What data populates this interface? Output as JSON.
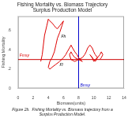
{
  "chart_data": {
    "type": "line",
    "title": "Fishing Mortality vs. Biomass Trajectory\nSurplus Production Model",
    "caption": "Figure 2b.  Fishing Mortality vs. Biomass trajectory from a\nSurplus Production Model.",
    "x_label": "Biomass(units)",
    "y_label": "Fishing Mortality",
    "x": [
      3.0,
      3.2,
      3.5,
      3.8,
      4.0,
      4.2,
      4.5,
      4.8,
      5.0,
      5.2,
      5.5,
      5.8,
      6.0,
      5.8,
      5.5,
      5.2,
      5.0,
      4.8,
      4.5,
      4.2,
      4.0,
      4.2,
      4.5,
      5.0,
      5.5,
      6.0,
      6.3,
      6.5,
      6.8,
      7.0,
      7.2,
      7.5,
      7.8,
      8.0,
      8.2,
      8.5,
      8.0,
      7.5,
      7.2,
      7.0,
      6.8,
      7.0,
      7.5,
      8.0,
      8.5,
      8.8,
      9.0,
      9.2,
      9.5,
      9.8,
      10.0,
      10.2,
      10.5,
      10.2,
      10.0,
      9.8,
      9.5,
      9.8,
      10.0,
      10.2,
      10.5,
      10.8,
      11.0,
      11.2,
      11.0,
      10.8
    ],
    "series": [
      {
        "color": "#dd0000",
        "values": [
          0.28,
          0.35,
          0.55,
          0.65,
          0.72,
          0.7,
          0.68,
          0.65,
          0.63,
          0.62,
          0.65,
          0.68,
          0.7,
          0.65,
          0.58,
          0.52,
          0.45,
          0.38,
          0.32,
          0.28,
          0.22,
          0.2,
          0.22,
          0.25,
          0.28,
          0.32,
          0.35,
          0.38,
          0.42,
          0.45,
          0.42,
          0.38,
          0.35,
          0.32,
          0.3,
          0.28,
          0.3,
          0.32,
          0.35,
          0.38,
          0.35,
          0.3,
          0.28,
          0.3,
          0.32,
          0.35,
          0.38,
          0.42,
          0.45,
          0.42,
          0.38,
          0.35,
          0.32,
          0.3,
          0.28,
          0.32,
          0.35,
          0.32,
          0.3,
          0.28,
          0.32,
          0.35,
          0.38,
          0.35,
          0.32,
          0.3
        ]
      }
    ],
    "h_line": {
      "y": 0.3,
      "color": "#cc0000"
    },
    "v_line": {
      "x": 8.0,
      "color": "#0000cc"
    },
    "annotations": [
      {
        "text": "Fmsy",
        "x": 0.2,
        "y": 0.32,
        "color": "#dd0000"
      },
      {
        "text": "Bmsy",
        "x": 8.2,
        "y": 0.01,
        "color": "#0000cc"
      },
      {
        "text": "Fh",
        "x": 5.7,
        "y": 0.52,
        "color": "#000000"
      },
      {
        "text": "Fl",
        "x": 5.5,
        "y": 0.22,
        "color": "#000000"
      }
    ],
    "xlim": [
      0,
      14
    ],
    "ylim": [
      0.0,
      0.75
    ],
    "xticks": [
      0,
      2,
      4,
      6,
      8,
      10,
      12,
      14
    ],
    "yticks": [
      0,
      {
        "value": 0.2,
        "label": ".2"
      },
      {
        "value": 0.4,
        "label": ".4"
      },
      {
        "value": 0.6,
        "label": ".6"
      }
    ],
    "grid": false
  }
}
